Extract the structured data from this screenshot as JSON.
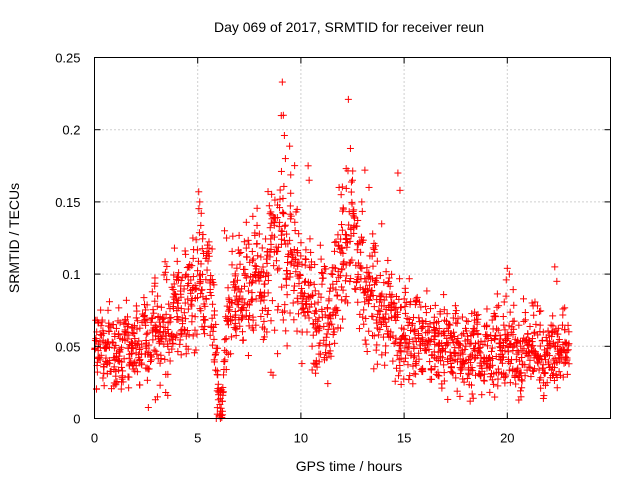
{
  "chart_data": {
    "type": "scatter",
    "title": "Day 069 of 2017, SRMTID for receiver reun",
    "xlabel": "GPS time / hours",
    "ylabel": "SRMTID / TECUs",
    "xlim": [
      0,
      25
    ],
    "ylim": [
      0,
      0.25
    ],
    "xticks": [
      0,
      5,
      10,
      15,
      20
    ],
    "xtick_labels": [
      "0",
      "5",
      "10",
      "15",
      "20"
    ],
    "yticks": [
      0,
      0.05,
      0.1,
      0.15,
      0.2,
      0.25
    ],
    "ytick_labels": [
      "0",
      "0.05",
      "0.1",
      "0.15",
      "0.2",
      "0.25"
    ],
    "grid": true,
    "marker": "+",
    "series": [
      {
        "name": "SRMTID",
        "color": "#ff0000",
        "x": [
          0.0,
          0.17,
          0.33,
          0.5,
          0.67,
          0.83,
          1.0,
          1.17,
          1.33,
          1.5,
          1.67,
          1.83,
          2.0,
          2.17,
          2.33,
          2.5,
          2.67,
          2.83,
          3.0,
          3.17,
          3.33,
          3.5,
          3.67,
          3.83,
          4.0,
          4.17,
          4.33,
          4.5,
          4.67,
          4.83,
          5.0,
          5.17,
          5.33,
          5.5,
          5.67,
          5.83,
          6.0,
          6.17,
          6.33,
          6.5,
          6.67,
          6.83,
          7.0,
          7.17,
          7.33,
          7.5,
          7.67,
          7.83,
          8.0,
          8.17,
          8.33,
          8.5,
          8.67,
          8.83,
          9.0,
          9.17,
          9.33,
          9.5,
          9.67,
          9.83,
          10.0,
          10.17,
          10.33,
          10.5,
          10.67,
          10.83,
          11.0,
          11.17,
          11.33,
          11.5,
          11.67,
          11.83,
          12.0,
          12.17,
          12.33,
          12.5,
          12.67,
          12.83,
          13.0,
          13.17,
          13.33,
          13.5,
          13.67,
          13.83,
          14.0,
          14.17,
          14.33,
          14.5,
          14.67,
          14.83,
          15.0,
          15.17,
          15.33,
          15.5,
          15.67,
          15.83,
          16.0,
          16.17,
          16.33,
          16.5,
          16.67,
          16.83,
          17.0,
          17.17,
          17.33,
          17.5,
          17.67,
          17.83,
          18.0,
          18.17,
          18.33,
          18.5,
          18.67,
          18.83,
          19.0,
          19.17,
          19.33,
          19.5,
          19.67,
          19.83,
          20.0,
          20.17,
          20.33,
          20.5,
          20.67,
          20.83,
          21.0,
          21.17,
          21.33,
          21.5,
          21.67,
          21.83,
          22.0,
          22.17,
          22.33,
          22.5,
          22.67,
          22.83
        ],
        "y": [
          0.05,
          0.042,
          0.055,
          0.038,
          0.061,
          0.047,
          0.044,
          0.052,
          0.036,
          0.058,
          0.045,
          0.049,
          0.06,
          0.041,
          0.067,
          0.054,
          0.038,
          0.071,
          0.062,
          0.048,
          0.073,
          0.066,
          0.055,
          0.079,
          0.084,
          0.069,
          0.088,
          0.076,
          0.091,
          0.082,
          0.098,
          0.104,
          0.087,
          0.112,
          0.095,
          0.06,
          0.012,
          0.004,
          0.055,
          0.072,
          0.089,
          0.081,
          0.094,
          0.078,
          0.101,
          0.086,
          0.092,
          0.108,
          0.098,
          0.085,
          0.103,
          0.116,
          0.125,
          0.094,
          0.132,
          0.118,
          0.107,
          0.128,
          0.114,
          0.099,
          0.093,
          0.085,
          0.078,
          0.089,
          0.072,
          0.068,
          0.081,
          0.074,
          0.065,
          0.092,
          0.086,
          0.101,
          0.112,
          0.124,
          0.118,
          0.135,
          0.109,
          0.096,
          0.088,
          0.079,
          0.085,
          0.093,
          0.072,
          0.081,
          0.076,
          0.068,
          0.074,
          0.062,
          0.057,
          0.049,
          0.066,
          0.058,
          0.071,
          0.052,
          0.063,
          0.047,
          0.055,
          0.061,
          0.044,
          0.058,
          0.052,
          0.046,
          0.063,
          0.049,
          0.041,
          0.057,
          0.045,
          0.038,
          0.052,
          0.047,
          0.043,
          0.058,
          0.036,
          0.049,
          0.054,
          0.041,
          0.046,
          0.062,
          0.039,
          0.051,
          0.044,
          0.048,
          0.056,
          0.042,
          0.037,
          0.053,
          0.047,
          0.041,
          0.058,
          0.044,
          0.05,
          0.039,
          0.047,
          0.052,
          0.043,
          0.049,
          0.046,
          0.051
        ],
        "spread": [
          0.012,
          0.012,
          0.013,
          0.012,
          0.013,
          0.012,
          0.012,
          0.013,
          0.012,
          0.013,
          0.012,
          0.013,
          0.014,
          0.013,
          0.014,
          0.014,
          0.013,
          0.015,
          0.015,
          0.014,
          0.016,
          0.016,
          0.015,
          0.017,
          0.018,
          0.017,
          0.018,
          0.017,
          0.019,
          0.018,
          0.02,
          0.021,
          0.019,
          0.022,
          0.02,
          0.015,
          0.01,
          0.008,
          0.015,
          0.018,
          0.02,
          0.019,
          0.021,
          0.019,
          0.022,
          0.02,
          0.021,
          0.023,
          0.022,
          0.02,
          0.023,
          0.025,
          0.027,
          0.022,
          0.028,
          0.026,
          0.024,
          0.027,
          0.025,
          0.022,
          0.021,
          0.02,
          0.019,
          0.021,
          0.018,
          0.018,
          0.02,
          0.019,
          0.018,
          0.022,
          0.021,
          0.023,
          0.025,
          0.026,
          0.025,
          0.028,
          0.024,
          0.022,
          0.021,
          0.019,
          0.02,
          0.021,
          0.018,
          0.02,
          0.019,
          0.018,
          0.019,
          0.017,
          0.016,
          0.015,
          0.018,
          0.016,
          0.018,
          0.015,
          0.017,
          0.014,
          0.015,
          0.016,
          0.013,
          0.016,
          0.015,
          0.014,
          0.016,
          0.014,
          0.013,
          0.015,
          0.014,
          0.013,
          0.015,
          0.014,
          0.013,
          0.015,
          0.012,
          0.014,
          0.015,
          0.013,
          0.014,
          0.016,
          0.013,
          0.014,
          0.013,
          0.014,
          0.015,
          0.013,
          0.012,
          0.014,
          0.014,
          0.013,
          0.015,
          0.013,
          0.014,
          0.012,
          0.013,
          0.014,
          0.013,
          0.014,
          0.013,
          0.014
        ],
        "outliers_x": [
          9.1,
          9.15,
          9.2,
          9.25,
          12.3,
          12.4,
          12.5,
          13.1,
          13.3,
          14.7,
          14.8,
          5.05,
          5.1,
          6.3,
          6.4,
          2.95,
          3.05,
          3.45,
          3.55,
          18.35,
          18.2,
          20.0,
          20.1,
          22.3,
          22.4,
          10.35,
          10.4,
          11.85,
          11.95,
          12.95,
          6.1,
          6.15,
          6.2,
          5.9,
          5.95,
          8.55,
          8.65,
          19.95,
          21.2,
          21.25
        ],
        "outliers_y": [
          0.233,
          0.21,
          0.196,
          0.18,
          0.221,
          0.187,
          0.165,
          0.172,
          0.16,
          0.17,
          0.158,
          0.157,
          0.15,
          0.13,
          0.125,
          0.013,
          0.015,
          0.018,
          0.016,
          0.014,
          0.012,
          0.104,
          0.1,
          0.105,
          0.095,
          0.175,
          0.165,
          0.16,
          0.155,
          0.15,
          0.0,
          0.002,
          0.005,
          0.0,
          0.003,
          0.032,
          0.03,
          0.096,
          0.08,
          0.078
        ]
      }
    ]
  }
}
